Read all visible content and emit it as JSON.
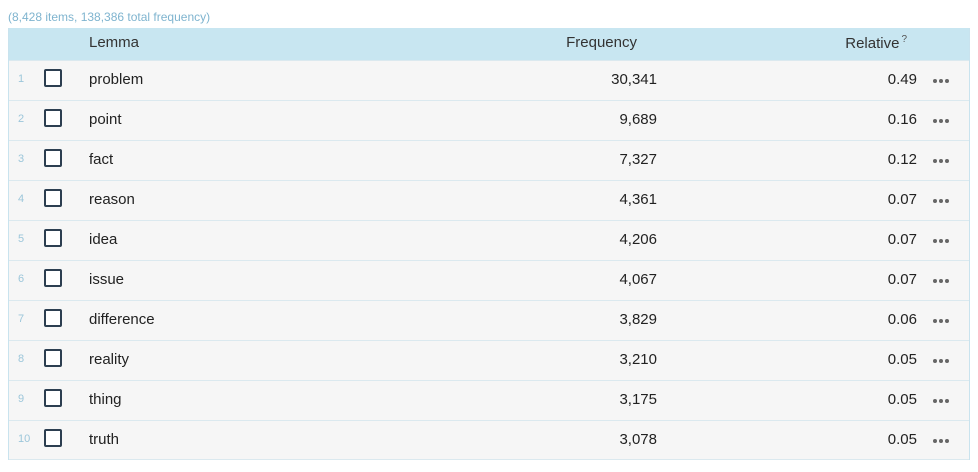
{
  "summary": "(8,428 items, 138,386 total frequency)",
  "columns": {
    "lemma": "Lemma",
    "frequency": "Frequency",
    "relative": "Relative",
    "relative_help": "?"
  },
  "rows": [
    {
      "num": "1",
      "lemma": "problem",
      "frequency": "30,341",
      "relative": "0.49"
    },
    {
      "num": "2",
      "lemma": "point",
      "frequency": "9,689",
      "relative": "0.16"
    },
    {
      "num": "3",
      "lemma": "fact",
      "frequency": "7,327",
      "relative": "0.12"
    },
    {
      "num": "4",
      "lemma": "reason",
      "frequency": "4,361",
      "relative": "0.07"
    },
    {
      "num": "5",
      "lemma": "idea",
      "frequency": "4,206",
      "relative": "0.07"
    },
    {
      "num": "6",
      "lemma": "issue",
      "frequency": "4,067",
      "relative": "0.07"
    },
    {
      "num": "7",
      "lemma": "difference",
      "frequency": "3,829",
      "relative": "0.06"
    },
    {
      "num": "8",
      "lemma": "reality",
      "frequency": "3,210",
      "relative": "0.05"
    },
    {
      "num": "9",
      "lemma": "thing",
      "frequency": "3,175",
      "relative": "0.05"
    },
    {
      "num": "10",
      "lemma": "truth",
      "frequency": "3,078",
      "relative": "0.05"
    }
  ],
  "colors": {
    "header_bg": "#c8e6f1",
    "row_bg": "#f6f6f6",
    "accent": "#7fb4cf"
  },
  "icons": {
    "row_menu": "more-horizontal-icon",
    "checkbox": "checkbox-empty-icon"
  }
}
